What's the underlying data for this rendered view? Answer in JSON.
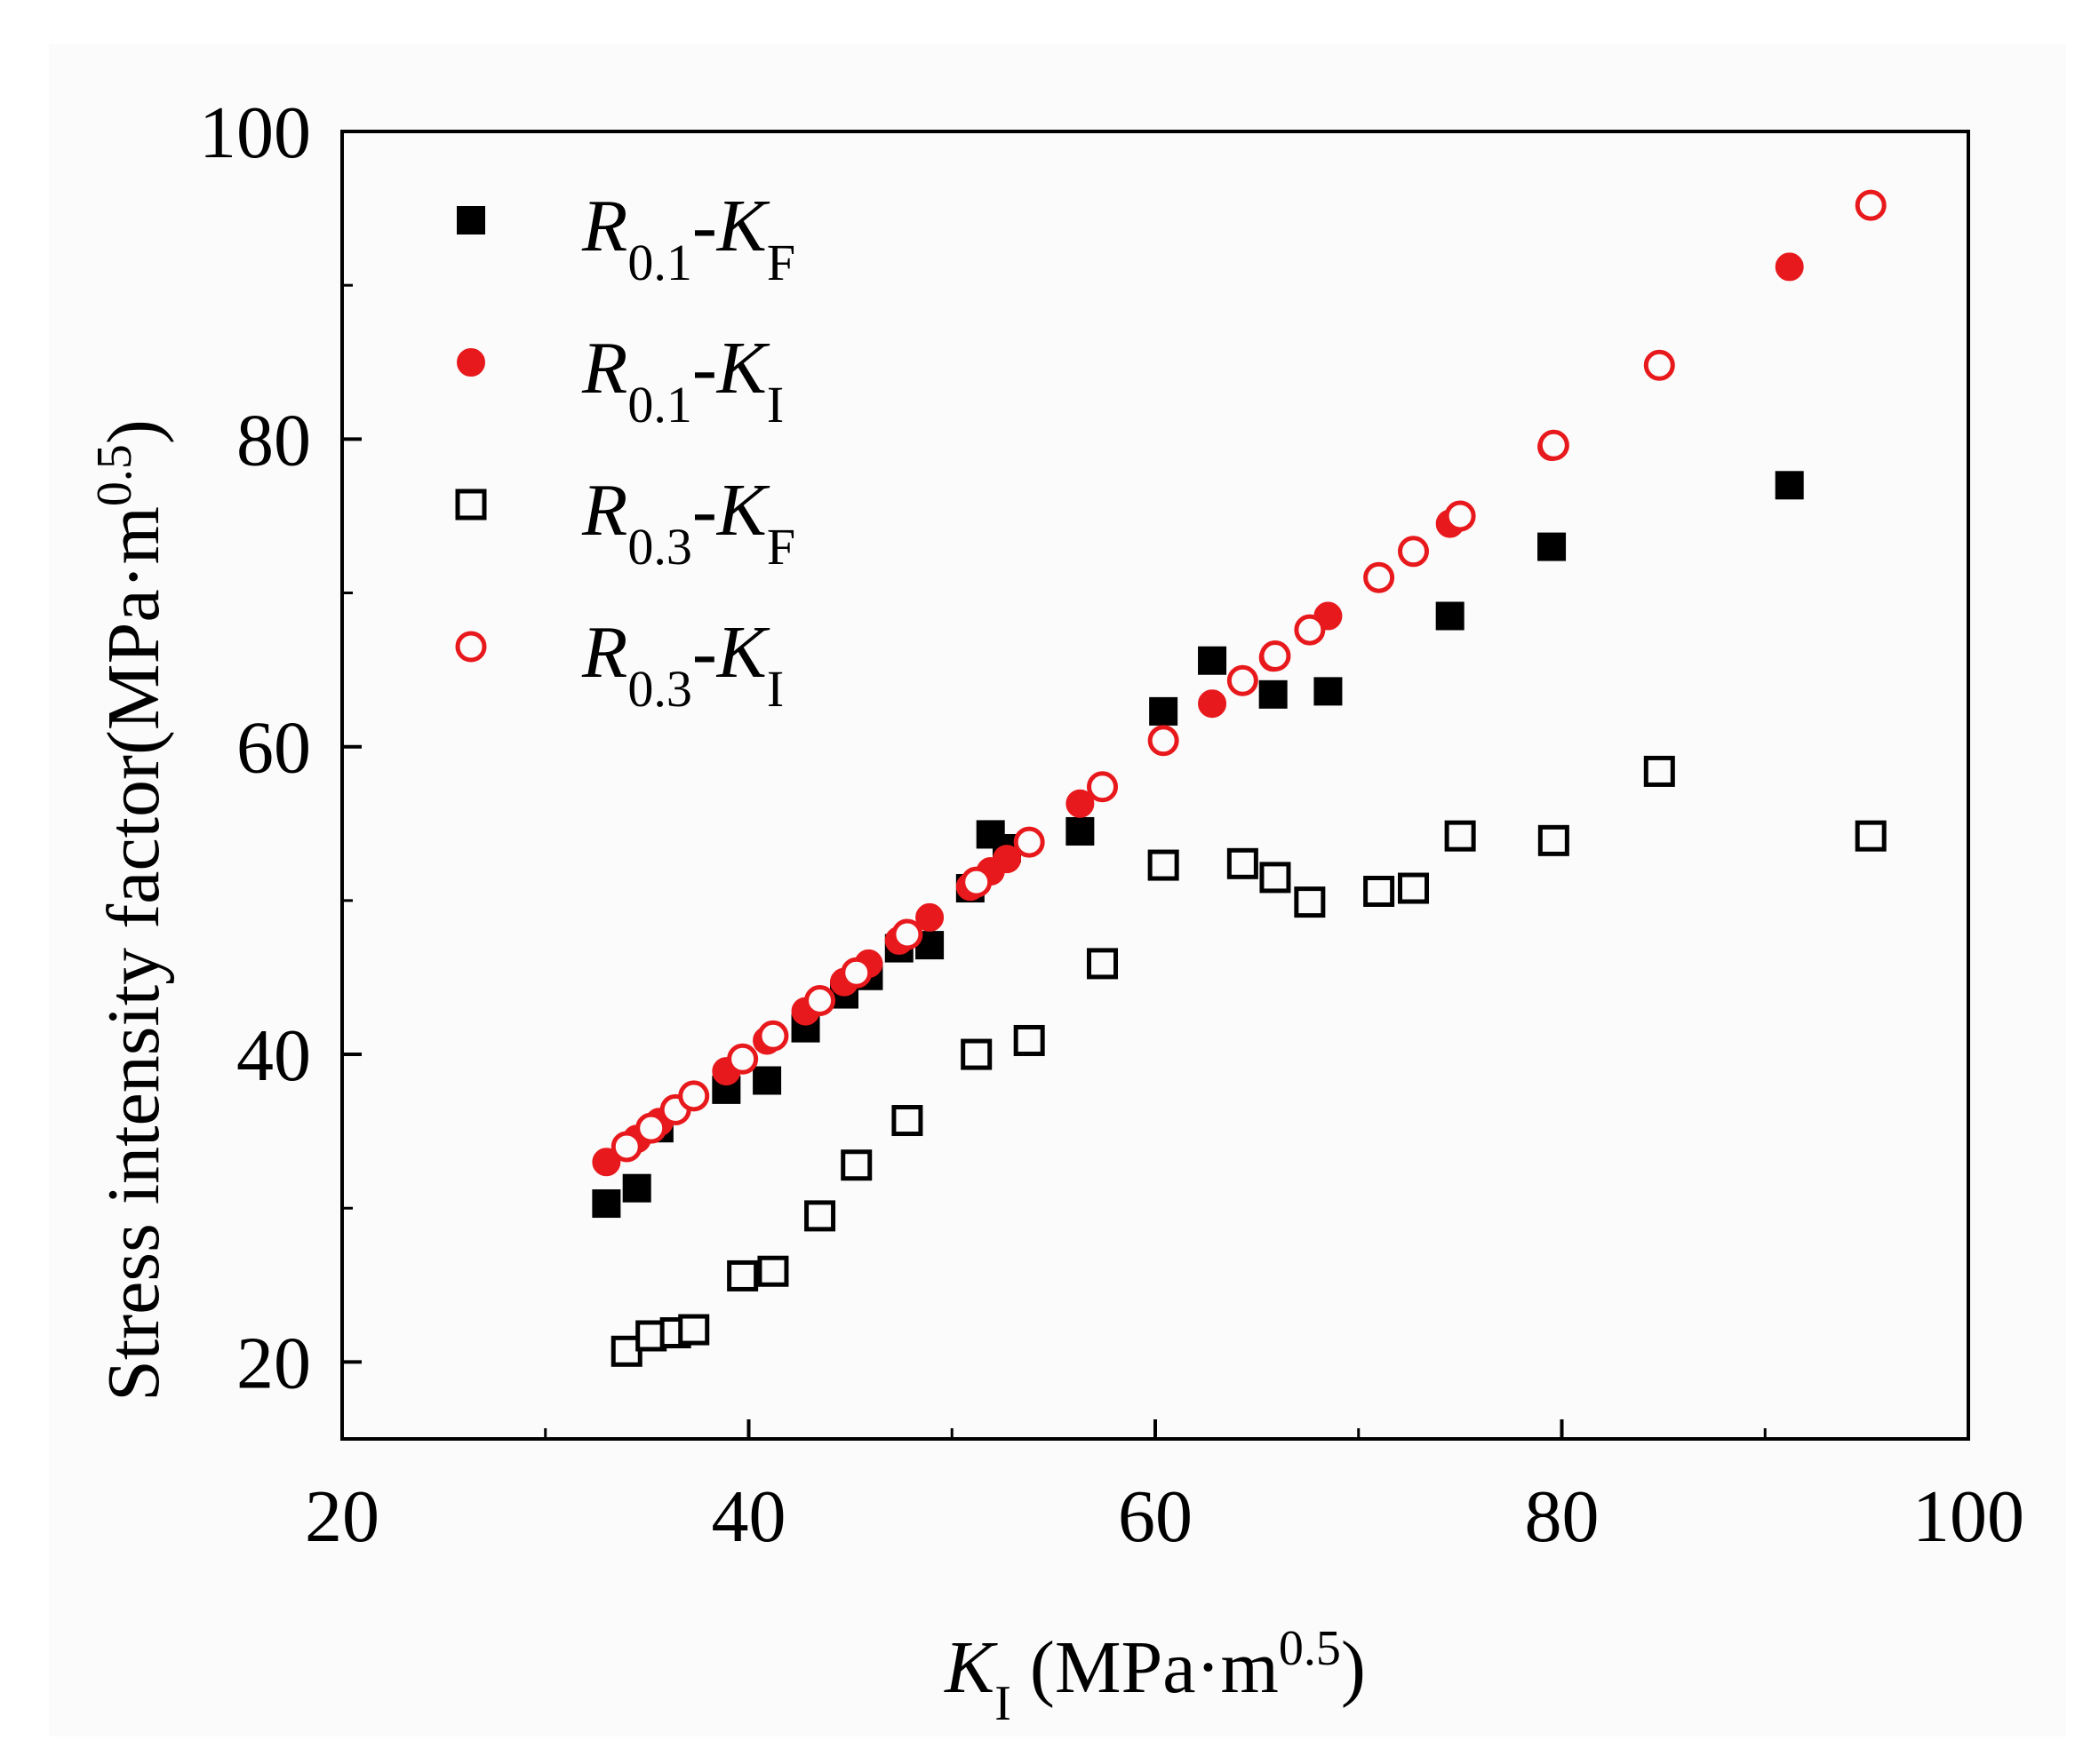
{
  "chart_data": {
    "type": "scatter",
    "xlabel": {
      "symbol": "K",
      "sub": "I",
      "unit_pre": " (MPa·m",
      "unit_sup": "0.5",
      "unit_post": ")"
    },
    "ylabel": {
      "text": "Stress intensity factor(MPa·m",
      "sup": "0.5",
      "post": ")"
    },
    "xlim": [
      20,
      100
    ],
    "ylim": [
      15,
      100
    ],
    "xticks": [
      "20",
      "40",
      "60",
      "80",
      "100"
    ],
    "yticks": [
      "20",
      "40",
      "60",
      "80",
      "100"
    ],
    "xtick_values": [
      20,
      40,
      60,
      80,
      100
    ],
    "ytick_values": [
      20,
      40,
      60,
      80,
      100
    ],
    "legend_position": "top-left",
    "series": [
      {
        "name": "R0.1-KF",
        "label": {
          "r": "R",
          "r_sub": "0.1",
          "dash": "-",
          "k": "K",
          "k_sub": "F"
        },
        "marker": "square",
        "filled": true,
        "color": "#000000",
        "points": [
          [
            33,
            30.3
          ],
          [
            34.5,
            31.3
          ],
          [
            35.6,
            35.2
          ],
          [
            38.9,
            37.7
          ],
          [
            40.9,
            38.3
          ],
          [
            42.8,
            41.7
          ],
          [
            44.7,
            43.9
          ],
          [
            45.9,
            45.1
          ],
          [
            47.4,
            46.9
          ],
          [
            48.9,
            47.1
          ],
          [
            50.9,
            50.8
          ],
          [
            52.7,
            53.4
          ],
          [
            51.9,
            54.3
          ],
          [
            56.3,
            54.5
          ],
          [
            60.4,
            62.3
          ],
          [
            62.8,
            65.6
          ],
          [
            65.8,
            63.4
          ],
          [
            68.5,
            63.6
          ],
          [
            74.5,
            68.5
          ],
          [
            79.5,
            73
          ],
          [
            91.2,
            77
          ]
        ]
      },
      {
        "name": "R0.1-KI",
        "label": {
          "r": "R",
          "r_sub": "0.1",
          "dash": "-",
          "k": "K",
          "k_sub": "I"
        },
        "marker": "circle",
        "filled": true,
        "color": "#e8191c",
        "points": [
          [
            33,
            33
          ],
          [
            34.5,
            34.5
          ],
          [
            35.6,
            35.6
          ],
          [
            38.9,
            38.9
          ],
          [
            40.9,
            40.9
          ],
          [
            42.8,
            42.8
          ],
          [
            44.7,
            44.7
          ],
          [
            45.9,
            45.9
          ],
          [
            47.4,
            47.4
          ],
          [
            48.9,
            48.9
          ],
          [
            50.9,
            50.9
          ],
          [
            51.9,
            51.9
          ],
          [
            52.7,
            52.7
          ],
          [
            56.3,
            56.3
          ],
          [
            60.4,
            60.4
          ],
          [
            62.8,
            62.8
          ],
          [
            65.8,
            65.8
          ],
          [
            68.5,
            68.5
          ],
          [
            74.5,
            74.5
          ],
          [
            79.5,
            79.5
          ],
          [
            91.2,
            91.2
          ]
        ]
      },
      {
        "name": "R0.3-KF",
        "label": {
          "r": "R",
          "r_sub": "0.3",
          "dash": "-",
          "k": "K",
          "k_sub": "F"
        },
        "marker": "square",
        "filled": false,
        "color": "#000000",
        "points": [
          [
            34,
            20.7
          ],
          [
            35.2,
            21.7
          ],
          [
            36.4,
            21.9
          ],
          [
            37.3,
            22.1
          ],
          [
            39.7,
            25.6
          ],
          [
            41.2,
            25.9
          ],
          [
            43.5,
            29.5
          ],
          [
            45.3,
            32.8
          ],
          [
            47.8,
            35.7
          ],
          [
            51.2,
            40
          ],
          [
            53.8,
            40.9
          ],
          [
            57.4,
            45.9
          ],
          [
            60.4,
            52.3
          ],
          [
            64.3,
            52.4
          ],
          [
            65.9,
            51.5
          ],
          [
            67.6,
            49.9
          ],
          [
            71,
            50.6
          ],
          [
            72.7,
            50.8
          ],
          [
            75,
            54.2
          ],
          [
            79.6,
            53.9
          ],
          [
            84.8,
            58.4
          ],
          [
            95.2,
            54.2
          ]
        ]
      },
      {
        "name": "R0.3-KI",
        "label": {
          "r": "R",
          "r_sub": "0.3",
          "dash": "-",
          "k": "K",
          "k_sub": "I"
        },
        "marker": "circle",
        "filled": false,
        "color": "#e8191c",
        "points": [
          [
            34,
            34
          ],
          [
            35.2,
            35.2
          ],
          [
            36.4,
            36.4
          ],
          [
            37.3,
            37.3
          ],
          [
            39.7,
            39.7
          ],
          [
            41.2,
            41.2
          ],
          [
            43.5,
            43.5
          ],
          [
            45.3,
            45.3
          ],
          [
            47.8,
            47.8
          ],
          [
            51.2,
            51.2
          ],
          [
            53.8,
            53.8
          ],
          [
            57.4,
            57.4
          ],
          [
            60.4,
            60.4
          ],
          [
            64.3,
            64.3
          ],
          [
            65.9,
            65.9
          ],
          [
            67.6,
            67.6
          ],
          [
            71,
            71
          ],
          [
            72.7,
            72.7
          ],
          [
            75,
            75
          ],
          [
            79.6,
            79.6
          ],
          [
            84.8,
            84.8
          ],
          [
            95.2,
            95.2
          ]
        ]
      }
    ]
  }
}
